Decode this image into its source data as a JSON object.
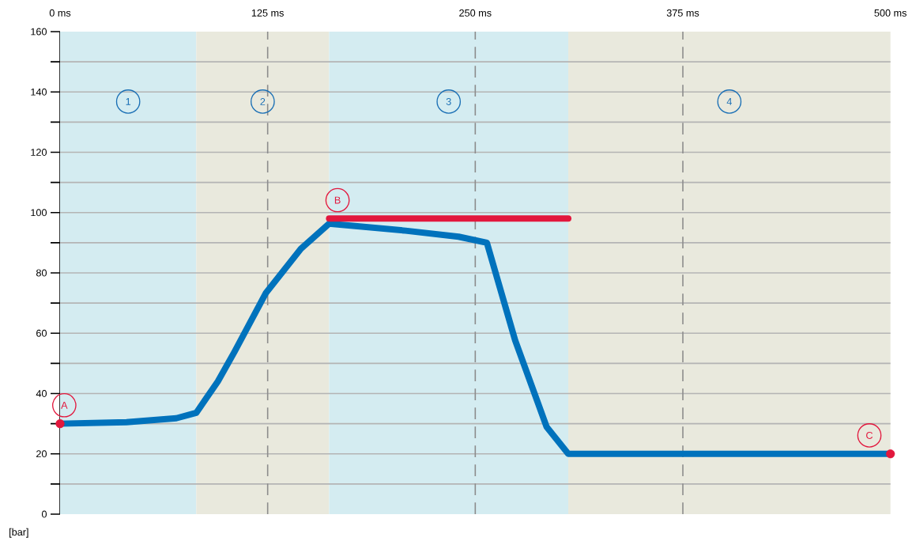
{
  "chart_data": {
    "type": "line",
    "ylabel": "[bar]",
    "xlim": [
      0,
      500
    ],
    "ylim": [
      0,
      160
    ],
    "xticks": [
      {
        "value": 0,
        "label": "0 ms"
      },
      {
        "value": 125,
        "label": "125 ms"
      },
      {
        "value": 250,
        "label": "250 ms"
      },
      {
        "value": 375,
        "label": "375 ms"
      },
      {
        "value": 500,
        "label": "500 ms"
      }
    ],
    "yticks": [
      0,
      {
        "value": 10,
        "label": null
      },
      20,
      {
        "value": 30,
        "label": null
      },
      40,
      {
        "value": 50,
        "label": null
      },
      60,
      {
        "value": 70,
        "label": null
      },
      80,
      {
        "value": 90,
        "label": null
      },
      100,
      {
        "value": 110,
        "label": null
      },
      120,
      {
        "value": 130,
        "label": null
      },
      140,
      {
        "value": 150,
        "label": null
      },
      160
    ],
    "grid": true,
    "line_style": "solid",
    "series": [
      {
        "color": "#0072bc",
        "x": [
          0,
          40,
          70,
          82,
          95,
          105,
          124,
          145,
          162,
          208,
          240,
          257,
          274,
          293,
          306,
          500
        ],
        "values": [
          30,
          30.5,
          31.8,
          33.6,
          44,
          53.8,
          73.4,
          88,
          96.3,
          94,
          92,
          90,
          57.7,
          28.9,
          20,
          20
        ]
      },
      {
        "type": "line",
        "color": "#e2173d",
        "x": [
          162,
          306
        ],
        "values": [
          98,
          98
        ]
      },
      {
        "type": "scatter",
        "color": "#e2173d",
        "x": [
          0,
          500
        ],
        "values": [
          30,
          20
        ]
      }
    ],
    "bands": [
      {
        "axis": "x",
        "from": 0,
        "to": 82,
        "label": "1",
        "color": "#d4ecf1"
      },
      {
        "axis": "x",
        "from": 82,
        "to": 162,
        "label": "2",
        "color": "#e9e9dd"
      },
      {
        "axis": "x",
        "from": 162,
        "to": 306,
        "label": "3",
        "color": "#d4ecf1"
      },
      {
        "axis": "x",
        "from": 306,
        "to": 500,
        "label": "4",
        "color": "#e9e9dd"
      }
    ],
    "annotations": [
      {
        "text": "A",
        "x": 0,
        "y": 30
      },
      {
        "text": "B",
        "x": 162,
        "y": 98
      },
      {
        "text": "C",
        "x": 500,
        "y": 20
      }
    ]
  }
}
